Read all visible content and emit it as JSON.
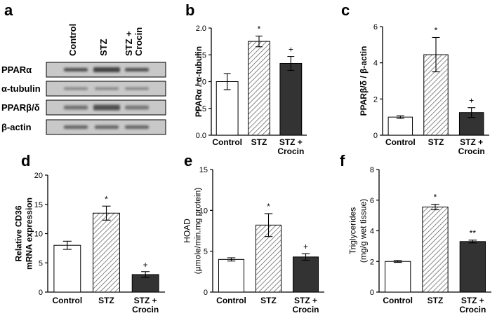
{
  "colors": {
    "control_fill": "#ffffff",
    "stz_fill": "hatch",
    "crocin_fill": "#333333",
    "axis": "#000000",
    "blot_background": "#c8c8c8",
    "blot_band": "#3a3a3a"
  },
  "western_blot": {
    "panel_label": "a",
    "lane_labels": [
      "Control",
      "STZ",
      "STZ +\nCrocin"
    ],
    "rows": [
      "PPARα",
      "α-tubulin",
      "PPARβ/δ",
      "β-actin"
    ]
  },
  "chart_data": [
    {
      "panel_label": "b",
      "type": "bar",
      "categories": [
        "Control",
        "STZ",
        "STZ +\nCrocin"
      ],
      "values": [
        1.0,
        1.75,
        1.34
      ],
      "errors": [
        0.15,
        0.1,
        0.13
      ],
      "significance": [
        "",
        "*",
        "+"
      ],
      "ylabel": "PPARα / α-tubulin",
      "ylim": [
        0,
        2.0
      ],
      "yticks": [
        0.0,
        0.5,
        1.0,
        1.5,
        2.0
      ],
      "ytick_labels": [
        "0.0",
        "0.5",
        "1.0",
        "1.5",
        "2.0"
      ]
    },
    {
      "panel_label": "c",
      "type": "bar",
      "categories": [
        "Control",
        "STZ",
        "STZ +\nCrocin"
      ],
      "values": [
        1.0,
        4.45,
        1.25
      ],
      "errors": [
        0.07,
        0.95,
        0.27
      ],
      "significance": [
        "",
        "*",
        "+"
      ],
      "ylabel": "PPARβ/δ / β-actin",
      "ylim": [
        0,
        6
      ],
      "yticks": [
        0,
        2,
        4,
        6
      ],
      "ytick_labels": [
        "0",
        "2",
        "4",
        "6"
      ]
    },
    {
      "panel_label": "d",
      "type": "bar",
      "categories": [
        "Control",
        "STZ",
        "STZ +\nCrocin"
      ],
      "values": [
        8.0,
        13.5,
        3.0
      ],
      "errors": [
        0.7,
        1.2,
        0.5
      ],
      "significance": [
        "",
        "*",
        "+"
      ],
      "ylabel": "Relative CD36\nmRNA expression",
      "ylim": [
        0,
        20
      ],
      "yticks": [
        0,
        5,
        10,
        15,
        20
      ],
      "ytick_labels": [
        "0",
        "5",
        "10",
        "15",
        "20"
      ]
    },
    {
      "panel_label": "e",
      "type": "bar",
      "categories": [
        "Control",
        "STZ",
        "STZ +\nCrocin"
      ],
      "values": [
        4.0,
        8.2,
        4.3
      ],
      "errors": [
        0.2,
        1.4,
        0.4
      ],
      "significance": [
        "",
        "*",
        "+"
      ],
      "ylabel": "HOAD\n(µmole/min.mg protein)",
      "ylim": [
        0,
        15
      ],
      "yticks": [
        0,
        5,
        10,
        15
      ],
      "ytick_labels": [
        "0",
        "5",
        "10",
        "15"
      ]
    },
    {
      "panel_label": "f",
      "type": "bar",
      "categories": [
        "Control",
        "STZ",
        "STZ +\nCrocin"
      ],
      "values": [
        2.0,
        5.55,
        3.3
      ],
      "errors": [
        0.06,
        0.18,
        0.09
      ],
      "significance": [
        "",
        "*",
        "**"
      ],
      "ylabel": "Triglycerides\n(mg/g wet tissue)",
      "ylim": [
        0,
        8
      ],
      "yticks": [
        0,
        2,
        4,
        6,
        8
      ],
      "ytick_labels": [
        "0",
        "2",
        "4",
        "6",
        "8"
      ]
    }
  ]
}
